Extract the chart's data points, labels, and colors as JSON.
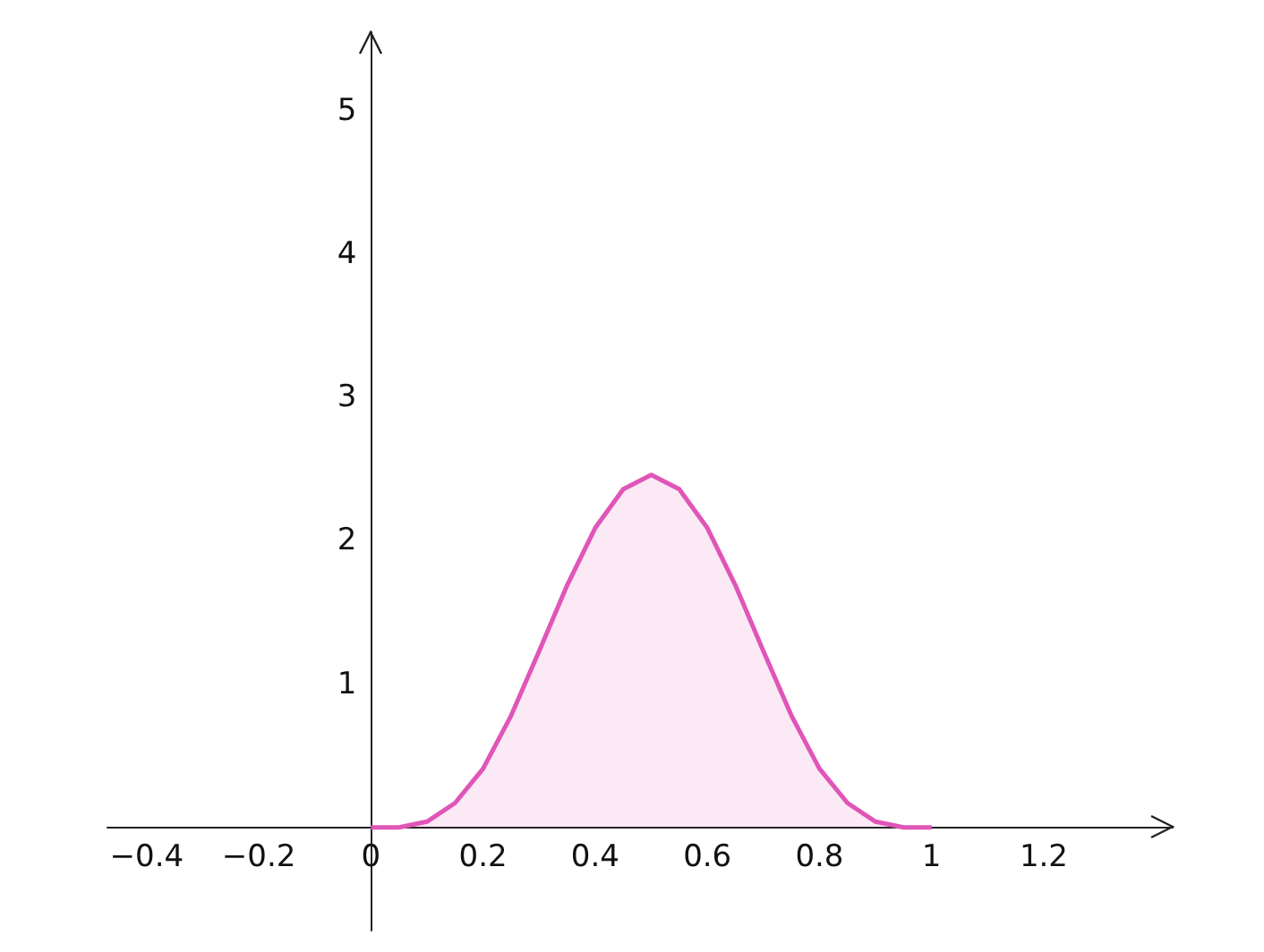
{
  "chart_data": {
    "type": "area",
    "x": [
      0,
      0.05,
      0.1,
      0.15,
      0.2,
      0.25,
      0.3,
      0.35,
      0.4,
      0.45,
      0.5,
      0.55,
      0.6,
      0.65,
      0.7,
      0.75,
      0.8,
      0.85,
      0.9,
      0.95,
      1
    ],
    "series": [
      {
        "color": "#e055b8",
        "values": [
          0,
          0,
          0.04,
          0.17,
          0.41,
          0.78,
          1.23,
          1.69,
          2.09,
          2.36,
          2.46,
          2.36,
          2.09,
          1.69,
          1.23,
          0.78,
          0.41,
          0.17,
          0.04,
          0,
          0
        ]
      }
    ],
    "xlim": [
      -0.47,
      1.43
    ],
    "ylim": [
      -0.72,
      5.55
    ],
    "xticks": [
      {
        "value": -0.4,
        "label": "−0.4"
      },
      {
        "value": -0.2,
        "label": "−0.2"
      },
      0,
      0.2,
      0.4,
      0.6,
      0.8,
      1,
      1.2
    ],
    "yticks": [
      1,
      2,
      3,
      4,
      5
    ],
    "grid": false,
    "marker": "none",
    "line_style": "solid"
  }
}
